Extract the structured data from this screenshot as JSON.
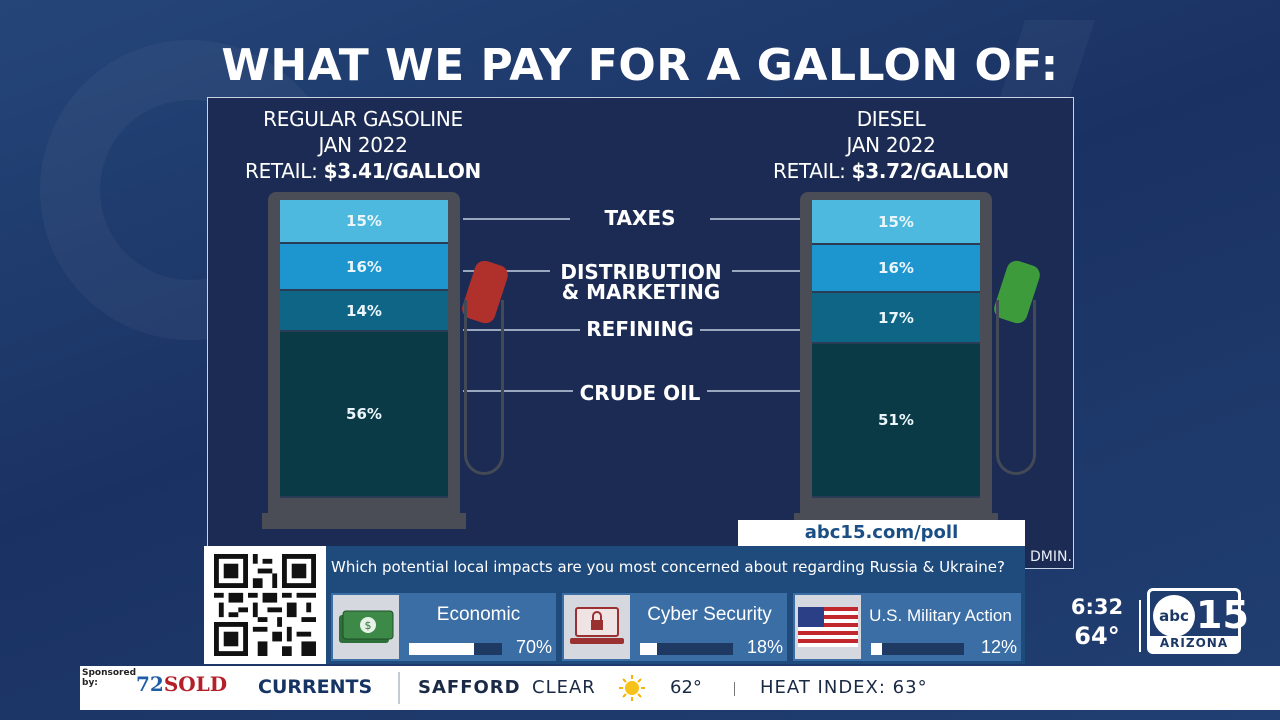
{
  "headline": "WHAT WE PAY FOR A GALLON OF:",
  "gasoline": {
    "title1": "REGULAR GASOLINE",
    "title2": "JAN 2022",
    "retail_prefix": "RETAIL:",
    "retail_value": "$3.41/GALLON",
    "segments": [
      {
        "label": "15%",
        "value": 15
      },
      {
        "label": "16%",
        "value": 16
      },
      {
        "label": "14%",
        "value": 14
      },
      {
        "label": "56%",
        "value": 56
      }
    ]
  },
  "diesel": {
    "title1": "DIESEL",
    "title2": "JAN 2022",
    "retail_prefix": "RETAIL:",
    "retail_value": "$3.72/GALLON",
    "segments": [
      {
        "label": "15%",
        "value": 15
      },
      {
        "label": "16%",
        "value": 16
      },
      {
        "label": "17%",
        "value": 17
      },
      {
        "label": "51%",
        "value": 51
      }
    ]
  },
  "categories": {
    "taxes": "TAXES",
    "distribution_1": "DISTRIBUTION",
    "distribution_2": "& MARKETING",
    "refining": "REFINING",
    "crude": "CRUDE OIL"
  },
  "segment_colors": [
    "#4db9de",
    "#1d96cf",
    "#0f6585",
    "#0b3a47"
  ],
  "source_fragment": "DMIN.",
  "poll": {
    "url": "abc15.com/poll",
    "question": "Which potential local impacts are you most concerned about regarding Russia & Ukraine?",
    "options": [
      {
        "label": "Economic",
        "percent": 70,
        "percent_label": "70%",
        "icon": "money-icon"
      },
      {
        "label": "Cyber Security",
        "percent": 18,
        "percent_label": "18%",
        "icon": "laptop-lock-icon"
      },
      {
        "label": "U.S. Military Action",
        "percent": 12,
        "percent_label": "12%",
        "icon": "us-flag-icon"
      }
    ]
  },
  "clock": {
    "time": "6:32",
    "temp": "64°"
  },
  "logo": {
    "abc": "abc",
    "number": "15",
    "region": "ARIZONA"
  },
  "ticker": {
    "sponsored": "Sponsored by:",
    "sponsor_number": "72",
    "sponsor_word": "SOLD",
    "section": "CURRENTS",
    "city": "SAFFORD",
    "condition": "CLEAR",
    "temp": "62°",
    "heat_index": "HEAT INDEX: 63°"
  }
}
